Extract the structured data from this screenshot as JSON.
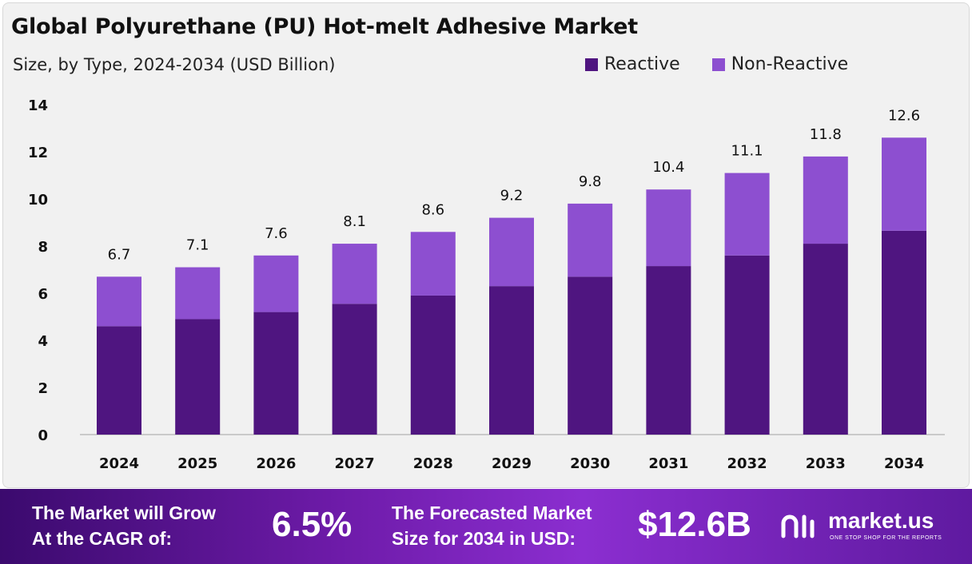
{
  "chart_data": {
    "type": "bar",
    "stacked": true,
    "title": "Global Polyurethane (PU) Hot-melt Adhesive Market",
    "subtitle": "Size, by Type, 2024-2034 (USD Billion)",
    "categories": [
      "2024",
      "2025",
      "2026",
      "2027",
      "2028",
      "2029",
      "2030",
      "2031",
      "2032",
      "2033",
      "2034"
    ],
    "series": [
      {
        "name": "Reactive",
        "color": "#4f1580",
        "values": [
          4.6,
          4.9,
          5.2,
          5.55,
          5.9,
          6.3,
          6.7,
          7.15,
          7.6,
          8.1,
          8.65
        ]
      },
      {
        "name": "Non-Reactive",
        "color": "#8d4fd0",
        "values": [
          2.1,
          2.2,
          2.4,
          2.55,
          2.7,
          2.9,
          3.1,
          3.25,
          3.5,
          3.7,
          3.95
        ]
      }
    ],
    "totals": [
      "6.7",
      "7.1",
      "7.6",
      "8.1",
      "8.6",
      "9.2",
      "9.8",
      "10.4",
      "11.1",
      "11.8",
      "12.6"
    ],
    "yticks": [
      "0",
      "2",
      "4",
      "6",
      "8",
      "10",
      "12",
      "14"
    ],
    "ylim": [
      0,
      14
    ],
    "legend_position": "top-right",
    "grid": false
  },
  "footer": {
    "cagr_label_line1": "The Market will Grow",
    "cagr_label_line2": "At the CAGR of:",
    "cagr_value": "6.5%",
    "forecast_label_line1": "The Forecasted Market",
    "forecast_label_line2": "Size for 2034 in USD:",
    "forecast_value": "$12.6B",
    "brand_name": "market.us",
    "brand_tagline": "ONE STOP SHOP FOR THE REPORTS"
  }
}
